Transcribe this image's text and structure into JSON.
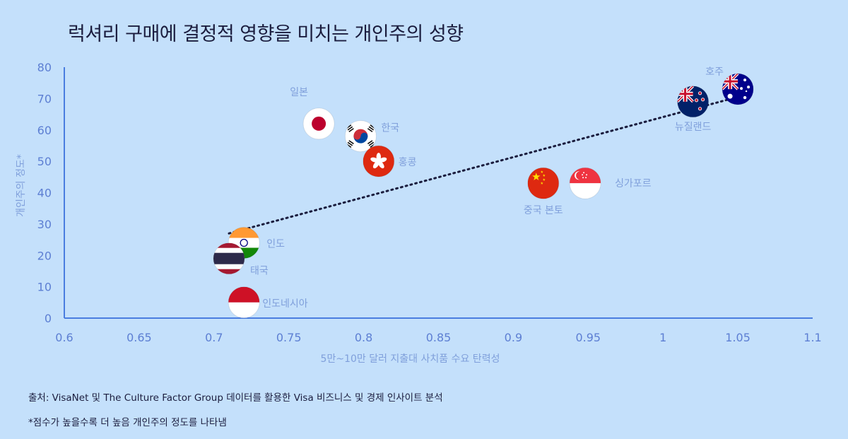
{
  "title": "럭셔리 구매에 결정적 영향을 미치는 개인주의 성향",
  "source": "출처: VisaNet 및 The Culture Factor Group 데이터를 활용한 Visa 비즈니스 및 경제 인사이트 분석",
  "footnote": "*점수가 높을수록 더 높음 개인주의 정도를 나타냄",
  "colors": {
    "background": "#c4e0fb",
    "axis": "#4a7de0",
    "tick": "#5d7fd3",
    "label": "#7f9fdb",
    "trend": "#1b1d3e"
  },
  "chart_data": {
    "type": "scatter",
    "title": "럭셔리 구매에 결정적 영향을 미치는 개인주의 성향",
    "xlabel": "5만~10만 달러 지출대 사치품 수요 탄력성",
    "ylabel": "개인주의 정도*",
    "xlim": [
      0.6,
      1.1
    ],
    "ylim": [
      0,
      80
    ],
    "x_ticks": [
      "0.6",
      "0.65",
      "0.7",
      "0.75",
      "0.8",
      "0.85",
      "0.9",
      "0.95",
      "1",
      "1.05",
      "1.1"
    ],
    "y_ticks": [
      "0",
      "10",
      "20",
      "30",
      "40",
      "50",
      "60",
      "70",
      "80"
    ],
    "grid": false,
    "legend": "none",
    "points": [
      {
        "label": "일본",
        "x": 0.77,
        "y": 62,
        "flag": "japan-flag-icon"
      },
      {
        "label": "한국",
        "x": 0.798,
        "y": 58,
        "flag": "south-korea-flag-icon"
      },
      {
        "label": "홍콩",
        "x": 0.81,
        "y": 50,
        "flag": "hong-kong-flag-icon"
      },
      {
        "label": "인도",
        "x": 0.72,
        "y": 24,
        "flag": "india-flag-icon"
      },
      {
        "label": "태국",
        "x": 0.71,
        "y": 19,
        "flag": "thailand-flag-icon"
      },
      {
        "label": "인도네시아",
        "x": 0.72,
        "y": 5,
        "flag": "indonesia-flag-icon"
      },
      {
        "label": "중국 본토",
        "x": 0.92,
        "y": 43,
        "flag": "china-flag-icon"
      },
      {
        "label": "싱가포르",
        "x": 0.948,
        "y": 43,
        "flag": "singapore-flag-icon"
      },
      {
        "label": "뉴질랜드",
        "x": 1.02,
        "y": 69,
        "flag": "new-zealand-flag-icon"
      },
      {
        "label": "호주",
        "x": 1.05,
        "y": 73,
        "flag": "australia-flag-icon"
      }
    ],
    "trendline": {
      "style": "dotted",
      "x": [
        0.71,
        1.05
      ],
      "y": [
        27,
        70.5
      ]
    }
  }
}
